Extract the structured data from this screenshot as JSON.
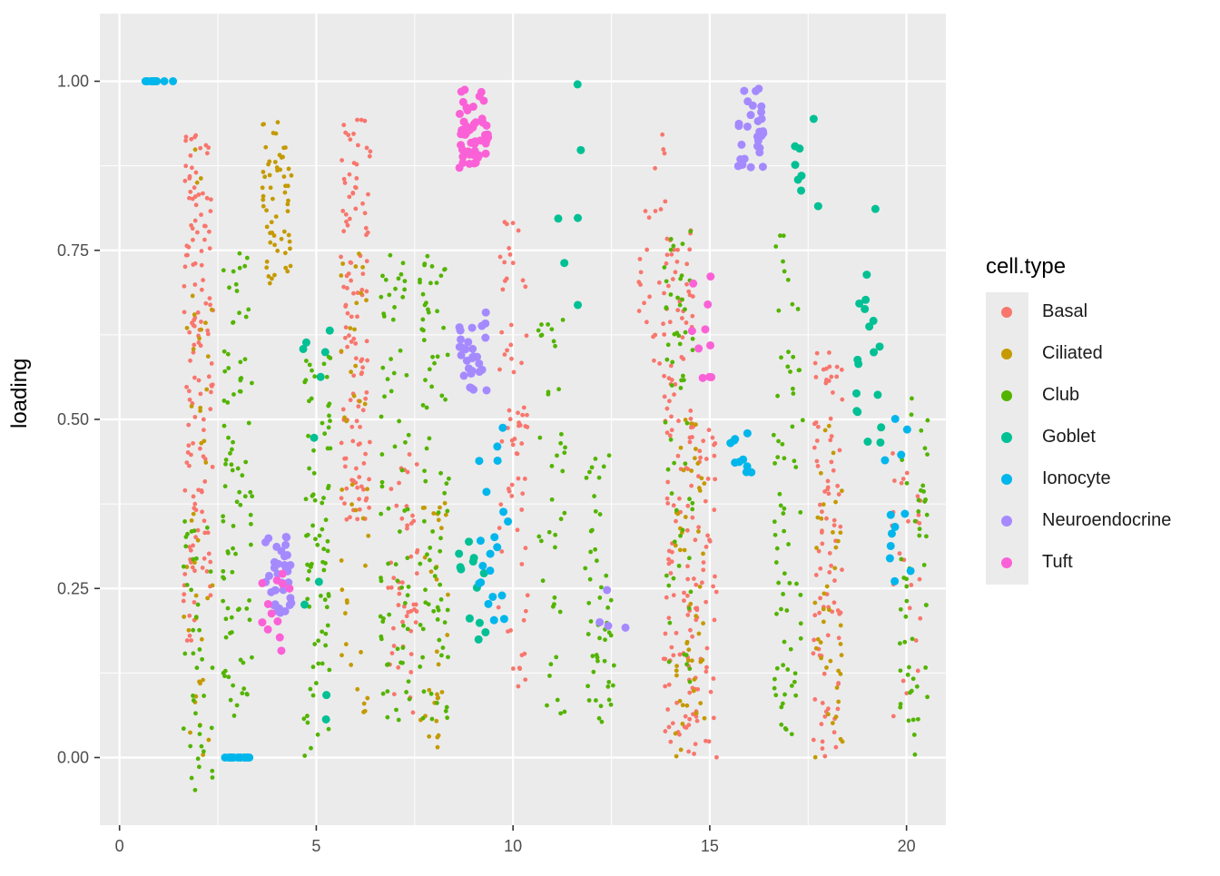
{
  "chart_data": {
    "type": "scatter",
    "title": "",
    "xlabel": "",
    "ylabel": "loading",
    "xlim": [
      -0.5,
      21
    ],
    "ylim": [
      -0.1,
      1.1
    ],
    "x_ticks": [
      0,
      5,
      10,
      15,
      20
    ],
    "y_ticks": [
      0.0,
      0.25,
      0.5,
      0.75,
      1.0
    ],
    "x_tick_labels": [
      "0",
      "5",
      "10",
      "15",
      "20"
    ],
    "y_tick_labels": [
      "0.00",
      "0.25",
      "0.50",
      "0.75",
      "1.00"
    ],
    "grid": true,
    "legend": {
      "title": "cell.type",
      "position": "right",
      "entries": [
        "Basal",
        "Ciliated",
        "Club",
        "Goblet",
        "Ionocyte",
        "Neuroendocrine",
        "Tuft"
      ]
    },
    "series": [
      {
        "name": "Basal",
        "color": "#F8766D",
        "clusters": [
          [
            2,
            0.55,
            0.38,
            140
          ],
          [
            6,
            0.65,
            0.3,
            120
          ],
          [
            7.2,
            0.25,
            0.2,
            50
          ],
          [
            10,
            0.45,
            0.35,
            70
          ],
          [
            13.5,
            0.75,
            0.2,
            25
          ],
          [
            14.2,
            0.4,
            0.38,
            110
          ],
          [
            14.8,
            0.25,
            0.25,
            70
          ],
          [
            18,
            0.3,
            0.3,
            90
          ],
          [
            20,
            0.25,
            0.2,
            25
          ]
        ]
      },
      {
        "name": "Ciliated",
        "color": "#C49A00",
        "clusters": [
          [
            2,
            0.45,
            0.45,
            40
          ],
          [
            4,
            0.82,
            0.12,
            60
          ],
          [
            6,
            0.4,
            0.35,
            40
          ],
          [
            8,
            0.2,
            0.2,
            30
          ],
          [
            14.5,
            0.25,
            0.25,
            50
          ],
          [
            18,
            0.25,
            0.25,
            40
          ]
        ]
      },
      {
        "name": "Club",
        "color": "#53B400",
        "clusters": [
          [
            2,
            0.15,
            0.2,
            40
          ],
          [
            3,
            0.4,
            0.35,
            90
          ],
          [
            5,
            0.3,
            0.3,
            80
          ],
          [
            7,
            0.4,
            0.35,
            70
          ],
          [
            8,
            0.4,
            0.35,
            80
          ],
          [
            11,
            0.35,
            0.3,
            40
          ],
          [
            12.2,
            0.25,
            0.2,
            50
          ],
          [
            14.2,
            0.45,
            0.35,
            60
          ],
          [
            17,
            0.4,
            0.38,
            70
          ],
          [
            20.2,
            0.3,
            0.3,
            50
          ]
        ]
      },
      {
        "name": "Goblet",
        "color": "#00C094",
        "clusters": [
          [
            5,
            0.35,
            0.3,
            10
          ],
          [
            9,
            0.25,
            0.08,
            12
          ],
          [
            11.5,
            0.8,
            0.2,
            6
          ],
          [
            17.5,
            0.9,
            0.1,
            8
          ],
          [
            19,
            0.65,
            0.2,
            18
          ]
        ]
      },
      {
        "name": "Ionocyte",
        "color": "#00B6EB",
        "clusters": [
          [
            1,
            1.0,
            0.0,
            10
          ],
          [
            3,
            0.0,
            0.0,
            14
          ],
          [
            9.5,
            0.35,
            0.15,
            20
          ],
          [
            15.8,
            0.45,
            0.04,
            10
          ],
          [
            19.8,
            0.4,
            0.15,
            12
          ]
        ]
      },
      {
        "name": "Neuroendocrine",
        "color": "#A58AFF",
        "clusters": [
          [
            4,
            0.27,
            0.06,
            35
          ],
          [
            9,
            0.6,
            0.06,
            30
          ],
          [
            16,
            0.93,
            0.06,
            30
          ],
          [
            12.5,
            0.25,
            0.1,
            4
          ]
        ]
      },
      {
        "name": "Tuft",
        "color": "#FB61D7",
        "clusters": [
          [
            9,
            0.93,
            0.06,
            50
          ],
          [
            4,
            0.2,
            0.08,
            12
          ],
          [
            14.8,
            0.65,
            0.1,
            10
          ]
        ]
      }
    ]
  }
}
